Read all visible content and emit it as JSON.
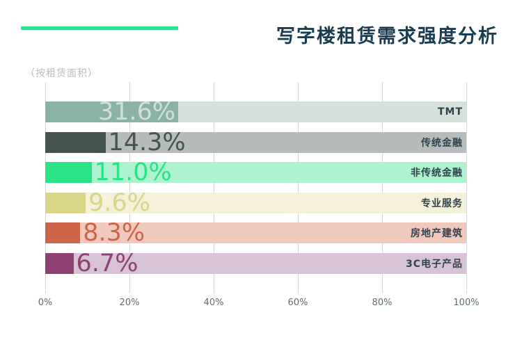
{
  "header": {
    "accent_color": "#2ee08b"
  },
  "chart_data": {
    "type": "bar",
    "orientation": "horizontal",
    "title": "写字楼租赁需求强度分析",
    "subtitle": "（按租赁面积）",
    "xlabel": "",
    "ylabel": "",
    "xlim": [
      0,
      100
    ],
    "grid": "vertical",
    "legend": "none",
    "x_ticks": [
      "0%",
      "20%",
      "40%",
      "60%",
      "80%",
      "100%"
    ],
    "x_tick_values": [
      0,
      20,
      40,
      60,
      80,
      100
    ],
    "categories": [
      "TMT",
      "传统金融",
      "非传统金融",
      "专业服务",
      "房地产建筑",
      "3C电子产品"
    ],
    "values": [
      31.6,
      14.3,
      11.0,
      9.6,
      8.3,
      6.7
    ],
    "rows": [
      {
        "category": "TMT",
        "value": 31.6,
        "label": "31.6%",
        "bar_color": "#8ab2a6",
        "track_color": "#d6e1dc",
        "label_color": "#d3dfda",
        "label_position": "inside"
      },
      {
        "category": "传统金融",
        "value": 14.3,
        "label": "14.3%",
        "bar_color": "#46544e",
        "track_color": "#b6bcbb",
        "label_color": "#46544e",
        "label_position": "outside"
      },
      {
        "category": "非传统金融",
        "value": 11.0,
        "label": "11.0%",
        "bar_color": "#2be285",
        "track_color": "#aef3d0",
        "label_color": "#2be285",
        "label_position": "outside"
      },
      {
        "category": "专业服务",
        "value": 9.6,
        "label": "9.6%",
        "bar_color": "#d9d689",
        "track_color": "#f4f1d8",
        "label_color": "#d9d689",
        "label_position": "outside"
      },
      {
        "category": "房地产建筑",
        "value": 8.3,
        "label": "8.3%",
        "bar_color": "#ce6549",
        "track_color": "#f0c8bc",
        "label_color": "#ce6549",
        "label_position": "outside"
      },
      {
        "category": "3C电子产品",
        "value": 6.7,
        "label": "6.7%",
        "bar_color": "#8f4173",
        "track_color": "#d8c2d6",
        "label_color": "#8f4173",
        "label_position": "outside"
      }
    ]
  }
}
